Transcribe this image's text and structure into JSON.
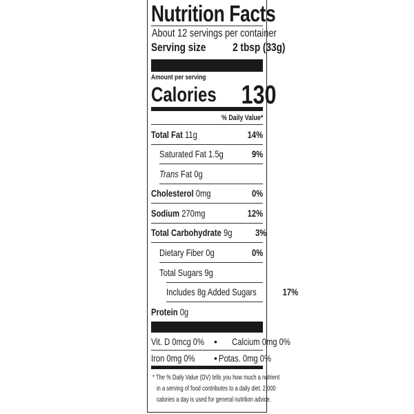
{
  "title": "Nutrition Facts",
  "servings": "About 12 servings per container",
  "serving_size_label": "Serving size",
  "serving_size_value": "2 tbsp (33g)",
  "amount_per_serving": "Amount per serving",
  "calories_label": "Calories",
  "calories_value": "130",
  "dv_header": "% Daily Value*",
  "nutrients": [
    {
      "name": "Total Fat",
      "amount": "11g",
      "dv": "14%"
    },
    {
      "name": "Saturated Fat",
      "amount": "1.5g",
      "dv": "9%"
    },
    {
      "name": "Trans",
      "name_suffix": "Fat",
      "amount": "0g",
      "dv": ""
    },
    {
      "name": "Cholesterol",
      "amount": "0mg",
      "dv": "0%"
    },
    {
      "name": "Sodium",
      "amount": "270mg",
      "dv": "12%"
    },
    {
      "name": "Total Carbohydrate",
      "amount": "9g",
      "dv": "3%"
    },
    {
      "name": "Dietary Fiber",
      "amount": "0g",
      "dv": "0%"
    },
    {
      "name": "Total Sugars",
      "amount": "9g",
      "dv": ""
    },
    {
      "name": "Includes 8g Added Sugars",
      "amount": "",
      "dv": "17%"
    },
    {
      "name": "Protein",
      "amount": "0g",
      "dv": ""
    }
  ],
  "vitamins": [
    {
      "left": "Vit. D 0mcg 0%",
      "right": "Calcium 0mg 0%"
    },
    {
      "left": "Iron 0mg 0%",
      "right": "Potas. 0mg 0%"
    }
  ],
  "bullet": "•",
  "footnote": [
    "* The % Daily Value (DV) tells you how much a nutrient",
    "in a serving of food contributes to a daily diet. 2,000",
    "calories a day is used for general nutrition advice."
  ]
}
